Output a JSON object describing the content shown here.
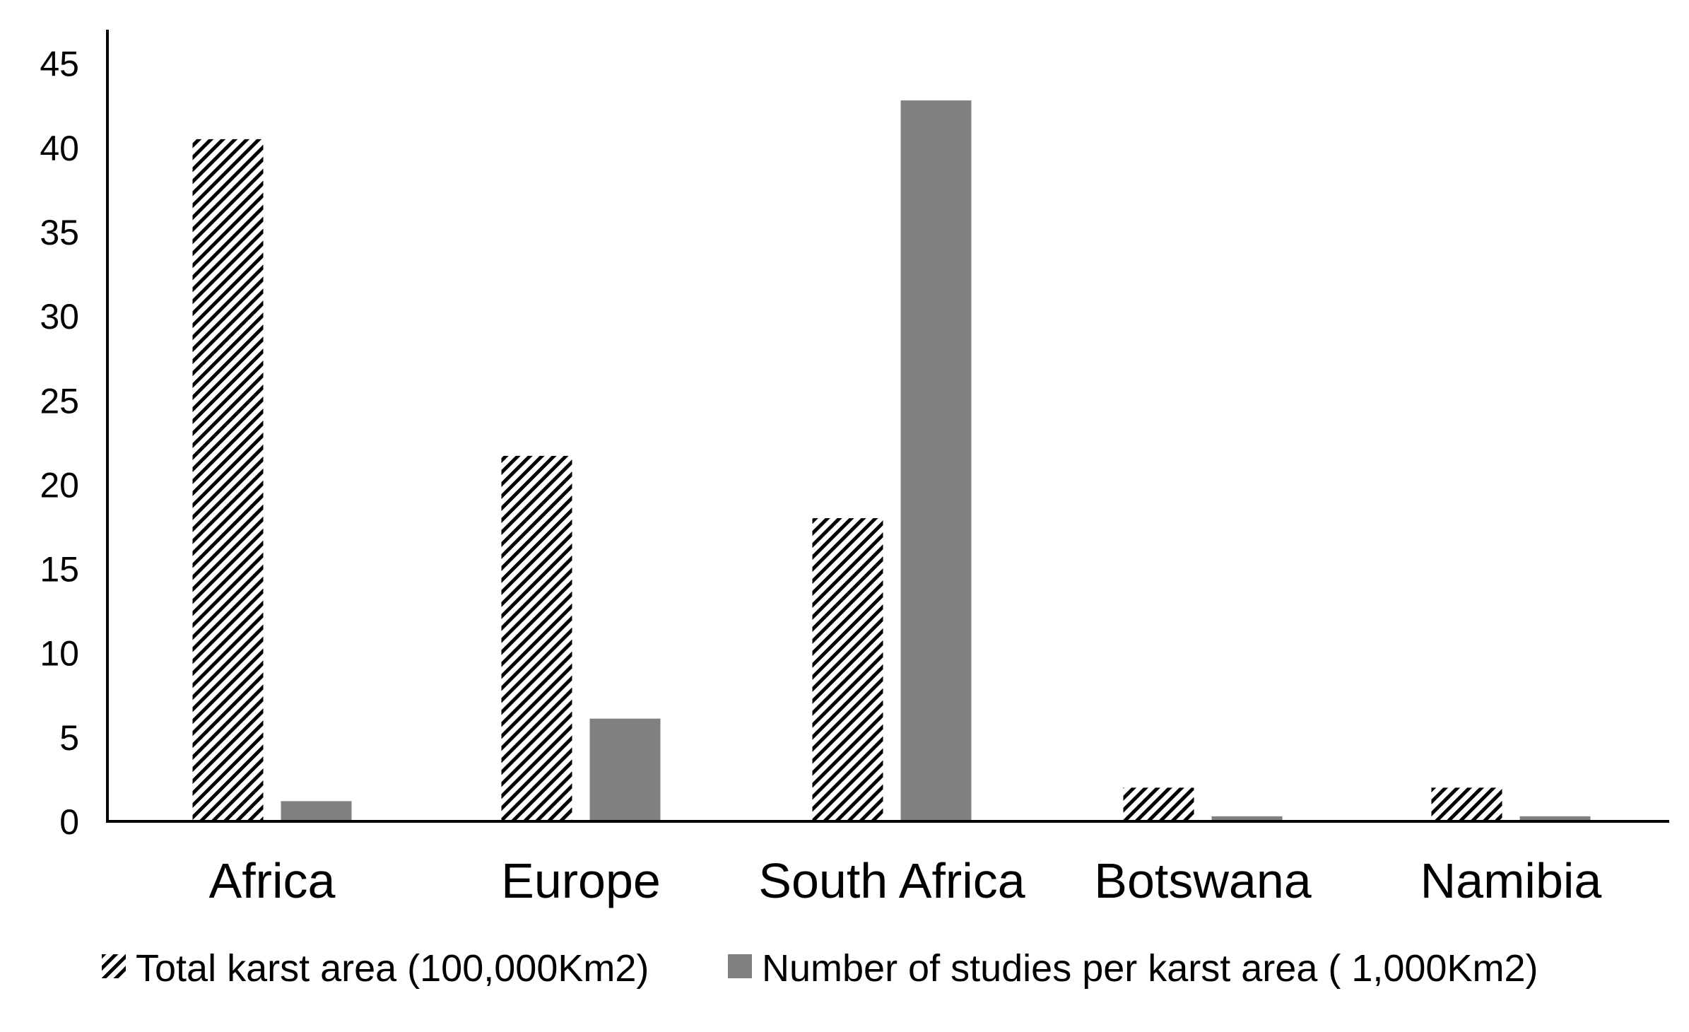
{
  "chart_data": {
    "type": "bar",
    "categories": [
      "Africa",
      "Europe",
      "South Africa",
      "Botswana",
      "Namibia"
    ],
    "series": [
      {
        "name": "Total karst area (100,000Km2)",
        "values": [
          40.5,
          21.7,
          18.0,
          2.0,
          2.0
        ],
        "fill": "hatched",
        "color": "#000000"
      },
      {
        "name": "Number of studies per karst area ( 1,000Km2)",
        "values": [
          1.2,
          6.1,
          42.8,
          0.3,
          0.3
        ],
        "fill": "solid",
        "color": "#808080"
      }
    ],
    "yticks": [
      "0",
      "5",
      "10",
      "15",
      "20",
      "25",
      "30",
      "35",
      "40",
      "45"
    ],
    "ylim": [
      0,
      47
    ],
    "grid": false,
    "legend_position": "bottom"
  }
}
